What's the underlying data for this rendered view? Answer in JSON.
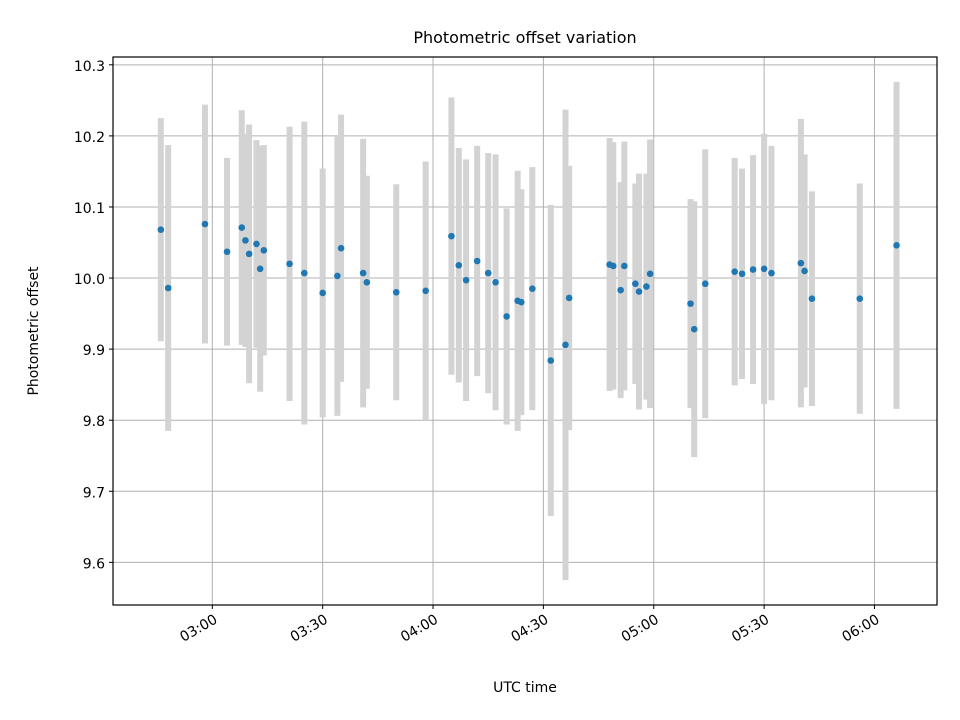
{
  "chart_data": {
    "type": "scatter",
    "title": "Photometric offset variation",
    "xlabel": "UTC time",
    "ylabel": "Photometric offset",
    "xlim": [
      "02:33",
      "06:17"
    ],
    "ylim": [
      9.54,
      10.311
    ],
    "x_ticks": [
      "03:00",
      "03:30",
      "04:00",
      "04:30",
      "05:00",
      "05:30",
      "06:00"
    ],
    "y_ticks": [
      9.6,
      9.7,
      9.8,
      9.9,
      10.0,
      10.1,
      10.2,
      10.3
    ],
    "y_tick_labels": [
      "9.6",
      "9.7",
      "9.8",
      "9.9",
      "10.0",
      "10.1",
      "10.2",
      "10.3"
    ],
    "grid": true,
    "colors": {
      "marker": "#1f77b4",
      "errorbar": "#d3d3d3",
      "grid": "#b0b0b0"
    },
    "series": [
      {
        "x": [
          "02:46",
          "02:48",
          "02:58",
          "03:04",
          "03:08",
          "03:09",
          "03:10",
          "03:12",
          "03:13",
          "03:14",
          "03:21",
          "03:25",
          "03:30",
          "03:34",
          "03:35",
          "03:41",
          "03:42",
          "03:50",
          "03:58",
          "04:05",
          "04:07",
          "04:09",
          "04:12",
          "04:15",
          "04:17",
          "04:20",
          "04:23",
          "04:24",
          "04:27",
          "04:32",
          "04:36",
          "04:37",
          "04:48",
          "04:49",
          "04:51",
          "04:52",
          "04:55",
          "04:56",
          "04:58",
          "04:59",
          "05:10",
          "05:11",
          "05:14",
          "05:22",
          "05:24",
          "05:27",
          "05:30",
          "05:32",
          "05:40",
          "05:41",
          "05:43",
          "05:56",
          "06:06"
        ],
        "y": [
          10.068,
          9.986,
          10.076,
          10.037,
          10.071,
          10.053,
          10.034,
          10.048,
          10.013,
          10.039,
          10.02,
          10.007,
          9.979,
          10.003,
          10.042,
          10.007,
          9.994,
          9.98,
          9.982,
          10.059,
          10.018,
          9.997,
          10.024,
          10.007,
          9.994,
          9.946,
          9.968,
          9.966,
          9.985,
          9.884,
          9.906,
          9.972,
          10.019,
          10.017,
          9.983,
          10.017,
          9.992,
          9.981,
          9.988,
          10.006,
          9.964,
          9.928,
          9.992,
          10.009,
          10.006,
          10.012,
          10.013,
          10.007,
          10.021,
          10.01,
          9.971,
          9.971,
          10.046
        ],
        "yerr": [
          0.157,
          0.201,
          0.168,
          0.132,
          0.165,
          0.15,
          0.182,
          0.146,
          0.173,
          0.148,
          0.193,
          0.213,
          0.175,
          0.197,
          0.188,
          0.189,
          0.15,
          0.152,
          0.182,
          0.195,
          0.165,
          0.17,
          0.162,
          0.169,
          0.18,
          0.152,
          0.183,
          0.159,
          0.171,
          0.219,
          0.331,
          0.186,
          0.178,
          0.174,
          0.152,
          0.175,
          0.141,
          0.166,
          0.159,
          0.189,
          0.147,
          0.18,
          0.189,
          0.16,
          0.148,
          0.161,
          0.19,
          0.179,
          0.203,
          0.164,
          0.151,
          0.162,
          0.23
        ]
      }
    ]
  }
}
